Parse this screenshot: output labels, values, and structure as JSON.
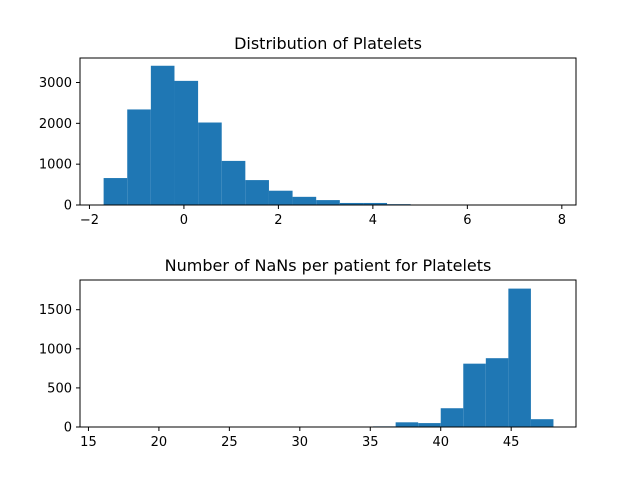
{
  "chart_data": [
    {
      "type": "bar",
      "title": "Distribution of Platelets",
      "xlabel": "",
      "ylabel": "",
      "xlim": [
        -2.2,
        8.3
      ],
      "ylim": [
        0,
        3600
      ],
      "grid": false,
      "color": "#1f77b4",
      "bin_edges": [
        -1.7,
        -1.2,
        -0.7,
        -0.2,
        0.3,
        0.8,
        1.3,
        1.8,
        2.3,
        2.8,
        3.3,
        3.8,
        4.3,
        4.8,
        5.3,
        5.8,
        6.3,
        6.8,
        7.3,
        7.8,
        8.1
      ],
      "values": [
        660,
        2340,
        3410,
        3040,
        2020,
        1080,
        610,
        350,
        200,
        120,
        50,
        50,
        20,
        10,
        5,
        4,
        3,
        2,
        2,
        1
      ],
      "xticks": [
        -2,
        0,
        2,
        4,
        6,
        8
      ],
      "xtick_labels": [
        "−2",
        "0",
        "2",
        "4",
        "6",
        "8"
      ],
      "yticks": [
        0,
        1000,
        2000,
        3000
      ],
      "ytick_labels": [
        "0",
        "1000",
        "2000",
        "3000"
      ]
    },
    {
      "type": "bar",
      "title": "Number of NaNs per patient for Platelets",
      "xlabel": "",
      "ylabel": "",
      "xlim": [
        14.4,
        49.6
      ],
      "ylim": [
        0,
        1880
      ],
      "grid": false,
      "color": "#1f77b4",
      "bin_edges": [
        16,
        17.6,
        19.2,
        20.8,
        22.4,
        24,
        25.6,
        27.2,
        28.8,
        30.4,
        32,
        33.6,
        35.2,
        36.8,
        38.4,
        40,
        41.6,
        43.2,
        44.8,
        46.4,
        48
      ],
      "values": [
        1,
        0,
        1,
        0,
        0,
        1,
        0,
        1,
        0,
        1,
        3,
        5,
        8,
        60,
        50,
        240,
        810,
        880,
        1770,
        100
      ],
      "xticks": [
        15,
        20,
        25,
        30,
        35,
        40,
        45
      ],
      "xtick_labels": [
        "15",
        "20",
        "25",
        "30",
        "35",
        "40",
        "45"
      ],
      "yticks": [
        0,
        500,
        1000,
        1500
      ],
      "ytick_labels": [
        "0",
        "500",
        "1000",
        "1500"
      ]
    }
  ]
}
